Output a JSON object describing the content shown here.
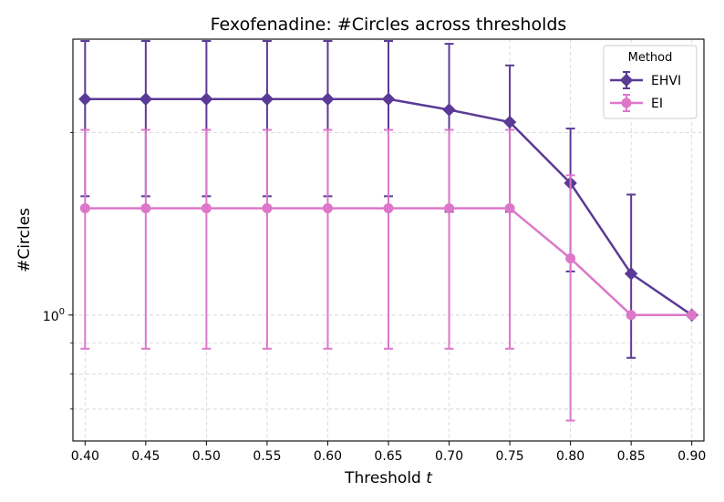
{
  "chart_data": {
    "type": "line",
    "title": "Fexofenadine: #Circles across thresholds",
    "xlabel": "Threshold",
    "xlabel_var": "t",
    "ylabel": "#Circles",
    "y_scale": "log",
    "y_tick_label": {
      "base": "10",
      "exp": "0"
    },
    "xlim": [
      0.39,
      0.91
    ],
    "ylim": [
      0.62,
      2.85
    ],
    "x_ticks": [
      "0.40",
      "0.45",
      "0.50",
      "0.55",
      "0.60",
      "0.65",
      "0.70",
      "0.75",
      "0.80",
      "0.85",
      "0.90"
    ],
    "x": [
      0.4,
      0.45,
      0.5,
      0.55,
      0.6,
      0.65,
      0.7,
      0.75,
      0.8,
      0.85,
      0.9
    ],
    "grid": true,
    "legend": {
      "title": "Method",
      "position": "top-right"
    },
    "series": [
      {
        "name": "EHVI",
        "color": "#5b3a96",
        "marker": "diamond",
        "values": [
          2.27,
          2.27,
          2.27,
          2.27,
          2.27,
          2.27,
          2.18,
          2.08,
          1.65,
          1.17,
          1.0
        ],
        "err_low": [
          1.57,
          1.57,
          1.57,
          1.57,
          1.57,
          1.57,
          1.48,
          1.48,
          1.18,
          0.85,
          1.0
        ],
        "err_high": [
          2.83,
          2.83,
          2.83,
          2.83,
          2.83,
          2.83,
          2.8,
          2.58,
          2.03,
          1.58,
          1.0
        ]
      },
      {
        "name": "EI",
        "color": "#dd77c9",
        "marker": "circle",
        "values": [
          1.5,
          1.5,
          1.5,
          1.5,
          1.5,
          1.5,
          1.5,
          1.5,
          1.24,
          1.0,
          1.0
        ],
        "err_low": [
          0.88,
          0.88,
          0.88,
          0.88,
          0.88,
          0.88,
          0.88,
          0.88,
          0.67,
          1.0,
          1.0
        ],
        "err_high": [
          2.02,
          2.02,
          2.02,
          2.02,
          2.02,
          2.02,
          2.02,
          2.02,
          1.7,
          1.0,
          1.0
        ]
      }
    ]
  }
}
